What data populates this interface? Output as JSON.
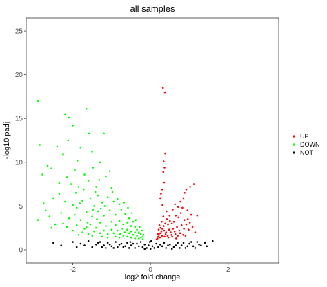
{
  "chart_data": {
    "type": "scatter",
    "title": "all samples",
    "xlabel": "log2 fold change",
    "ylabel": "-log10 padj",
    "xlim": [
      -3.2,
      3.3
    ],
    "ylim": [
      -1.5,
      26.5
    ],
    "x_ticks": [
      -2,
      0,
      2
    ],
    "y_ticks": [
      0,
      5,
      10,
      15,
      20,
      25
    ],
    "grid": false,
    "legend_position": "right",
    "series": [
      {
        "name": "UP",
        "color": "#ff0000",
        "points": [
          [
            0.32,
            18.5
          ],
          [
            0.37,
            18.0
          ],
          [
            0.38,
            11.0
          ],
          [
            0.34,
            10.1
          ],
          [
            0.36,
            9.4
          ],
          [
            0.33,
            8.9
          ],
          [
            0.35,
            7.7
          ],
          [
            0.3,
            6.9
          ],
          [
            0.27,
            6.4
          ],
          [
            0.25,
            5.9
          ],
          [
            0.31,
            5.1
          ],
          [
            1.12,
            7.5
          ],
          [
            1.02,
            7.2
          ],
          [
            0.92,
            6.9
          ],
          [
            0.88,
            6.5
          ],
          [
            0.85,
            5.9
          ],
          [
            0.82,
            4.8
          ],
          [
            0.95,
            4.5
          ],
          [
            1.05,
            4.0
          ],
          [
            1.2,
            3.9
          ],
          [
            0.78,
            4.2
          ],
          [
            0.72,
            3.7
          ],
          [
            0.65,
            3.9
          ],
          [
            0.6,
            3.2
          ],
          [
            0.55,
            3.0
          ],
          [
            0.5,
            3.3
          ],
          [
            0.45,
            2.9
          ],
          [
            0.42,
            3.5
          ],
          [
            0.38,
            3.0
          ],
          [
            0.34,
            2.7
          ],
          [
            0.3,
            2.4
          ],
          [
            0.28,
            2.1
          ],
          [
            0.25,
            1.9
          ],
          [
            0.22,
            1.7
          ],
          [
            0.2,
            1.5
          ],
          [
            0.18,
            1.3
          ],
          [
            0.16,
            1.2
          ],
          [
            0.35,
            2.2
          ],
          [
            0.4,
            2.0
          ],
          [
            0.48,
            2.3
          ],
          [
            0.52,
            2.0
          ],
          [
            0.58,
            2.4
          ],
          [
            0.62,
            2.1
          ],
          [
            0.68,
            2.6
          ],
          [
            0.74,
            2.2
          ],
          [
            0.8,
            2.8
          ],
          [
            0.86,
            2.4
          ],
          [
            0.92,
            2.9
          ],
          [
            0.98,
            2.3
          ],
          [
            1.08,
            2.6
          ],
          [
            1.15,
            2.0
          ],
          [
            0.44,
            1.6
          ],
          [
            0.54,
            1.7
          ],
          [
            0.64,
            1.8
          ],
          [
            0.7,
            1.6
          ],
          [
            0.76,
            1.9
          ],
          [
            0.84,
            1.7
          ],
          [
            0.9,
            1.6
          ],
          [
            0.24,
            1.4
          ],
          [
            0.3,
            1.6
          ],
          [
            0.36,
            1.5
          ],
          [
            0.46,
            1.4
          ],
          [
            0.56,
            1.5
          ],
          [
            0.66,
            1.3
          ],
          [
            0.26,
            2.5
          ],
          [
            0.33,
            3.8
          ],
          [
            0.41,
            4.4
          ],
          [
            0.49,
            3.9
          ],
          [
            0.57,
            4.6
          ],
          [
            0.63,
            5.2
          ],
          [
            0.71,
            4.9
          ],
          [
            0.77,
            5.5
          ],
          [
            0.96,
            3.5
          ],
          [
            1.01,
            3.1
          ],
          [
            0.87,
            3.4
          ],
          [
            0.19,
            1.8
          ],
          [
            0.21,
            2.3
          ],
          [
            0.23,
            2.8
          ],
          [
            0.29,
            3.2
          ],
          [
            0.39,
            1.8
          ]
        ]
      },
      {
        "name": "DOWN",
        "color": "#00ff00",
        "points": [
          [
            -2.9,
            17.0
          ],
          [
            -2.2,
            15.5
          ],
          [
            -2.1,
            15.1
          ],
          [
            -1.65,
            16.1
          ],
          [
            -2.0,
            14.2
          ],
          [
            -1.58,
            13.3
          ],
          [
            -1.2,
            13.3
          ],
          [
            -2.85,
            12.0
          ],
          [
            -2.4,
            11.8
          ],
          [
            -1.8,
            11.7
          ],
          [
            -1.5,
            11.2
          ],
          [
            -1.3,
            10.0
          ],
          [
            -2.25,
            10.9
          ],
          [
            -2.65,
            9.6
          ],
          [
            -2.78,
            8.6
          ],
          [
            -2.55,
            9.3
          ],
          [
            -1.95,
            9.1
          ],
          [
            -1.7,
            8.6
          ],
          [
            -2.15,
            8.3
          ],
          [
            -2.05,
            7.5
          ],
          [
            -1.85,
            7.2
          ],
          [
            -1.6,
            7.9
          ],
          [
            -1.4,
            7.2
          ],
          [
            -1.15,
            8.4
          ],
          [
            -1.0,
            7.1
          ],
          [
            -2.35,
            6.4
          ],
          [
            -2.75,
            5.3
          ],
          [
            -2.5,
            5.9
          ],
          [
            -2.2,
            5.5
          ],
          [
            -2.0,
            5.1
          ],
          [
            -1.9,
            4.8
          ],
          [
            -1.75,
            5.6
          ],
          [
            -1.55,
            5.9
          ],
          [
            -1.45,
            5.0
          ],
          [
            -1.35,
            6.2
          ],
          [
            -1.25,
            5.4
          ],
          [
            -1.1,
            6.0
          ],
          [
            -0.95,
            5.5
          ],
          [
            -0.85,
            5.8
          ],
          [
            -0.8,
            5.2
          ],
          [
            -2.9,
            3.4
          ],
          [
            -2.6,
            3.8
          ],
          [
            -2.3,
            4.2
          ],
          [
            -2.1,
            3.6
          ],
          [
            -1.95,
            4.0
          ],
          [
            -1.8,
            3.4
          ],
          [
            -1.65,
            4.3
          ],
          [
            -1.5,
            3.8
          ],
          [
            -1.35,
            4.4
          ],
          [
            -1.2,
            3.9
          ],
          [
            -1.05,
            4.5
          ],
          [
            -0.9,
            4.0
          ],
          [
            -0.75,
            4.6
          ],
          [
            -0.65,
            4.1
          ],
          [
            -0.55,
            3.6
          ],
          [
            -2.45,
            2.9
          ],
          [
            -2.15,
            2.6
          ],
          [
            -1.9,
            2.8
          ],
          [
            -1.7,
            2.4
          ],
          [
            -1.55,
            2.9
          ],
          [
            -1.4,
            2.5
          ],
          [
            -1.3,
            3.1
          ],
          [
            -1.15,
            2.7
          ],
          [
            -1.0,
            3.2
          ],
          [
            -0.9,
            2.8
          ],
          [
            -0.8,
            3.3
          ],
          [
            -0.7,
            2.9
          ],
          [
            -0.6,
            3.1
          ],
          [
            -0.5,
            2.7
          ],
          [
            -0.45,
            3.2
          ],
          [
            -0.4,
            2.6
          ],
          [
            -0.35,
            2.3
          ],
          [
            -0.3,
            2.0
          ],
          [
            -0.25,
            1.8
          ],
          [
            -0.2,
            1.5
          ],
          [
            -1.75,
            2.0
          ],
          [
            -1.6,
            1.8
          ],
          [
            -1.45,
            2.1
          ],
          [
            -1.3,
            1.9
          ],
          [
            -1.2,
            2.2
          ],
          [
            -1.1,
            1.8
          ],
          [
            -1.0,
            2.3
          ],
          [
            -0.95,
            1.9
          ],
          [
            -0.85,
            2.2
          ],
          [
            -0.78,
            1.8
          ],
          [
            -0.72,
            2.4
          ],
          [
            -0.66,
            2.0
          ],
          [
            -0.6,
            2.3
          ],
          [
            -0.55,
            1.9
          ],
          [
            -0.5,
            2.1
          ],
          [
            -0.45,
            1.7
          ],
          [
            -0.4,
            2.0
          ],
          [
            -0.35,
            1.6
          ],
          [
            -0.3,
            1.9
          ],
          [
            -0.25,
            1.4
          ],
          [
            -0.9,
            1.5
          ],
          [
            -0.8,
            1.4
          ],
          [
            -0.7,
            1.6
          ],
          [
            -0.6,
            1.5
          ],
          [
            -0.5,
            1.4
          ],
          [
            -0.4,
            1.3
          ],
          [
            -0.3,
            1.3
          ],
          [
            -0.2,
            1.2
          ],
          [
            -1.25,
            1.5
          ],
          [
            -1.1,
            1.4
          ],
          [
            -2.0,
            2.2
          ],
          [
            -1.85,
            1.7
          ],
          [
            -1.65,
            2.6
          ],
          [
            -1.5,
            1.6
          ],
          [
            -1.38,
            3.5
          ],
          [
            -2.25,
            3.0
          ],
          [
            -2.7,
            4.5
          ],
          [
            -2.55,
            2.5
          ],
          [
            -2.35,
            7.6
          ],
          [
            -1.05,
            9.0
          ],
          [
            -0.98,
            6.6
          ],
          [
            -1.18,
            5.0
          ],
          [
            -1.28,
            4.7
          ],
          [
            -0.68,
            5.4
          ],
          [
            -0.58,
            4.8
          ],
          [
            -0.48,
            4.2
          ],
          [
            -0.38,
            3.4
          ],
          [
            -0.28,
            2.6
          ],
          [
            -0.22,
            2.2
          ],
          [
            -0.18,
            1.7
          ],
          [
            -1.62,
            3.1
          ],
          [
            -1.48,
            4.6
          ],
          [
            -1.82,
            5.3
          ],
          [
            -1.92,
            6.5
          ],
          [
            -1.72,
            6.9
          ],
          [
            -1.42,
            6.6
          ],
          [
            -1.32,
            8.0
          ],
          [
            -1.48,
            9.4
          ],
          [
            -1.88,
            10.2
          ],
          [
            -2.12,
            12.5
          ]
        ]
      },
      {
        "name": "NOT",
        "color": "#000000",
        "points": [
          [
            -2.0,
            0.9
          ],
          [
            -1.8,
            0.7
          ],
          [
            -1.6,
            1.0
          ],
          [
            -1.4,
            0.6
          ],
          [
            -1.3,
            0.9
          ],
          [
            -1.2,
            0.5
          ],
          [
            -1.1,
            0.8
          ],
          [
            -1.0,
            0.4
          ],
          [
            -0.9,
            0.9
          ],
          [
            -0.8,
            0.6
          ],
          [
            -0.7,
            0.3
          ],
          [
            -0.6,
            0.8
          ],
          [
            -0.5,
            0.5
          ],
          [
            -0.4,
            0.2
          ],
          [
            -0.35,
            0.7
          ],
          [
            -0.3,
            0.4
          ],
          [
            -0.25,
            0.9
          ],
          [
            -0.2,
            0.3
          ],
          [
            -0.15,
            0.6
          ],
          [
            -0.1,
            0.2
          ],
          [
            -0.05,
            0.5
          ],
          [
            0.0,
            0.1
          ],
          [
            0.05,
            0.4
          ],
          [
            0.1,
            0.2
          ],
          [
            0.15,
            0.7
          ],
          [
            0.2,
            0.3
          ],
          [
            0.25,
            0.6
          ],
          [
            0.3,
            0.4
          ],
          [
            0.35,
            0.8
          ],
          [
            0.4,
            0.2
          ],
          [
            0.5,
            0.6
          ],
          [
            0.6,
            0.3
          ],
          [
            0.7,
            0.8
          ],
          [
            0.8,
            0.5
          ],
          [
            0.9,
            0.2
          ],
          [
            1.0,
            0.7
          ],
          [
            1.1,
            0.4
          ],
          [
            1.2,
            0.9
          ],
          [
            1.3,
            0.5
          ],
          [
            1.4,
            0.8
          ],
          [
            1.6,
            1.0
          ],
          [
            1.45,
            0.4
          ],
          [
            -2.3,
            0.5
          ],
          [
            -2.5,
            0.8
          ],
          [
            -1.9,
            0.3
          ],
          [
            -1.7,
            0.5
          ],
          [
            -1.5,
            0.3
          ],
          [
            -0.95,
            0.2
          ],
          [
            -0.85,
            0.3
          ],
          [
            -0.75,
            0.7
          ],
          [
            -0.65,
            0.4
          ],
          [
            -0.55,
            0.2
          ],
          [
            -0.45,
            0.7
          ],
          [
            -0.15,
            0.1
          ],
          [
            0.45,
            0.5
          ],
          [
            0.55,
            0.1
          ],
          [
            0.65,
            0.5
          ],
          [
            0.75,
            0.2
          ],
          [
            0.85,
            0.8
          ],
          [
            0.95,
            0.4
          ],
          [
            1.05,
            0.9
          ],
          [
            1.15,
            0.2
          ],
          [
            1.25,
            0.6
          ],
          [
            -0.02,
            0.9
          ],
          [
            0.02,
            1.0
          ],
          [
            -1.15,
            0.2
          ],
          [
            -1.25,
            0.3
          ],
          [
            -1.35,
            0.8
          ],
          [
            -1.05,
            0.6
          ],
          [
            -0.52,
            0.9
          ]
        ]
      }
    ]
  }
}
